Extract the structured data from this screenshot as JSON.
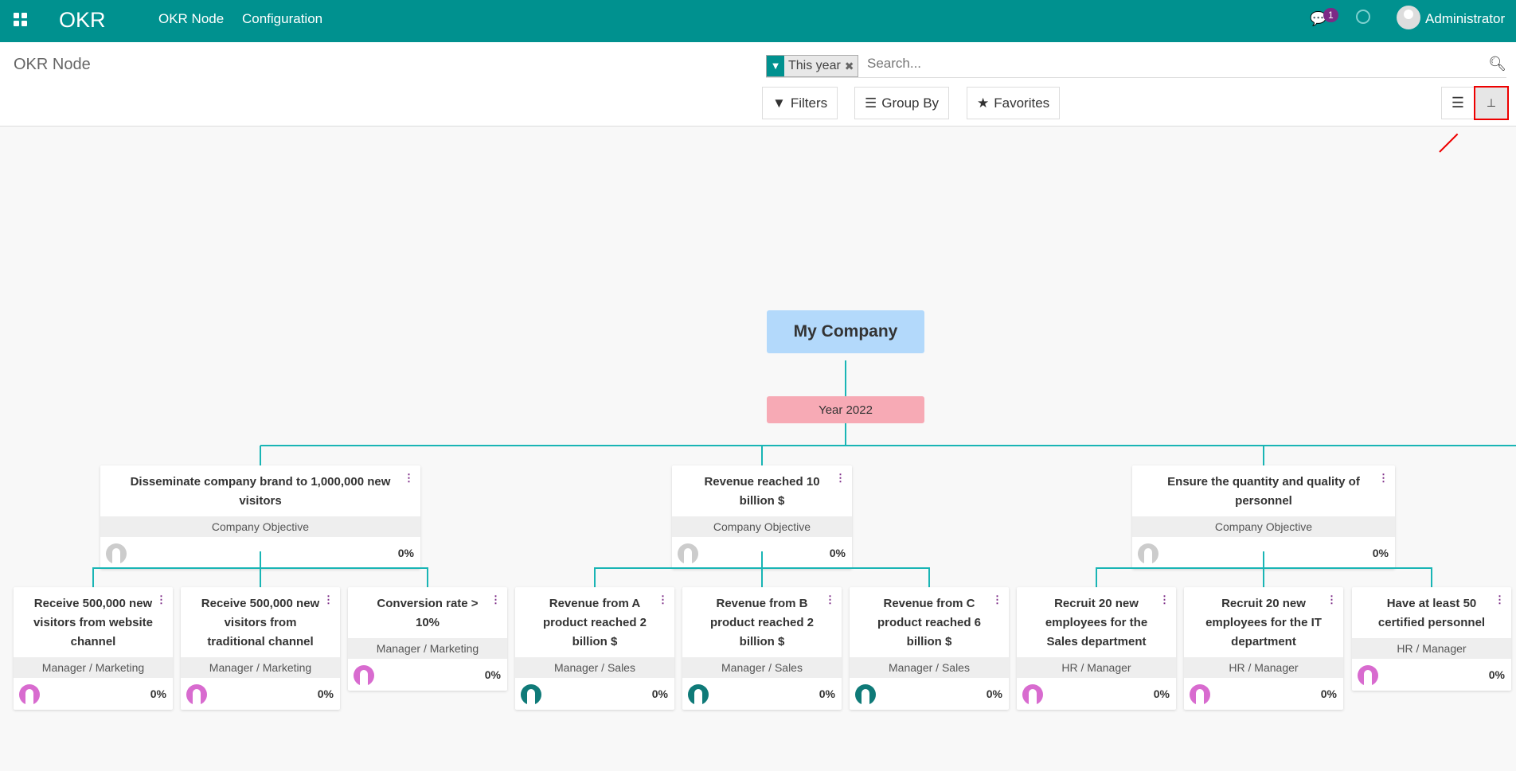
{
  "navbar": {
    "brand": "OKR",
    "menu": [
      "OKR Node",
      "Configuration"
    ],
    "message_count": "1",
    "user": "Administrator"
  },
  "control": {
    "title": "OKR Node",
    "facet": "This year",
    "search_placeholder": "Search...",
    "filters": "Filters",
    "group_by": "Group By",
    "favorites": "Favorites",
    "active_view": "hierarchy"
  },
  "tree": {
    "root": "My Company",
    "year": "Year 2022",
    "objectives": [
      {
        "title": "Disseminate company brand to 1,000,000 new visitors",
        "type": "Company Objective",
        "progress": "0%",
        "avatar_color": "#cccccc",
        "children": [
          {
            "title": "Receive 500,000 new visitors from website channel",
            "role": "Manager / Marketing",
            "progress": "0%",
            "avatar_color": "#d86bcf"
          },
          {
            "title": "Receive 500,000 new visitors from traditional channel",
            "role": "Manager / Marketing",
            "progress": "0%",
            "avatar_color": "#d86bcf"
          },
          {
            "title": "Conversion rate > 10%",
            "role": "Manager / Marketing",
            "progress": "0%",
            "avatar_color": "#d86bcf"
          }
        ]
      },
      {
        "title": "Revenue reached 10 billion $",
        "type": "Company Objective",
        "progress": "0%",
        "avatar_color": "#cccccc",
        "children": [
          {
            "title": "Revenue from A product reached 2 billion $",
            "role": "Manager / Sales",
            "progress": "0%",
            "avatar_color": "#0f7a78"
          },
          {
            "title": "Revenue from B product reached 2 billion $",
            "role": "Manager / Sales",
            "progress": "0%",
            "avatar_color": "#0f7a78"
          },
          {
            "title": "Revenue from C product reached 6 billion $",
            "role": "Manager / Sales",
            "progress": "0%",
            "avatar_color": "#0f7a78"
          }
        ]
      },
      {
        "title": "Ensure the quantity and quality of personnel",
        "type": "Company Objective",
        "progress": "0%",
        "avatar_color": "#cccccc",
        "children": [
          {
            "title": "Recruit 20 new employees for the Sales department",
            "role": "HR / Manager",
            "progress": "0%",
            "avatar_color": "#d86bcf"
          },
          {
            "title": "Recruit 20 new employees for the IT department",
            "role": "HR / Manager",
            "progress": "0%",
            "avatar_color": "#d86bcf"
          },
          {
            "title": "Have at least 50 certified personnel",
            "role": "HR / Manager",
            "progress": "0%",
            "avatar_color": "#d86bcf"
          }
        ]
      }
    ]
  }
}
